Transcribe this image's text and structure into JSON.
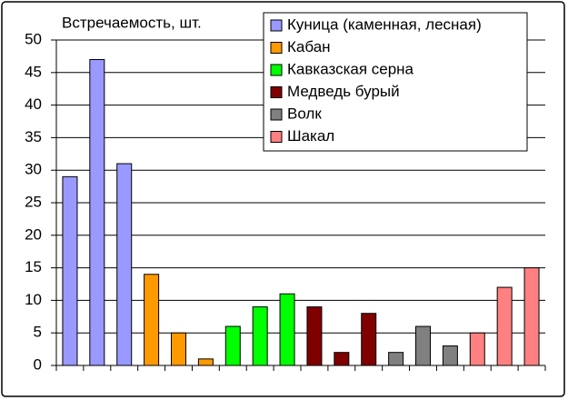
{
  "chart_data": {
    "type": "bar",
    "title": "Встречаемость, шт.",
    "categories": [
      null,
      null,
      null,
      null,
      null,
      null,
      null,
      null,
      null,
      null,
      null,
      null,
      null,
      null,
      null,
      null,
      null,
      null
    ],
    "series": [
      {
        "name": "Куница (каменная, лесная)",
        "color": "#9999ff",
        "values": [
          29,
          47,
          31,
          null,
          null,
          null,
          null,
          null,
          null,
          null,
          null,
          null,
          null,
          null,
          null,
          null,
          null,
          null
        ]
      },
      {
        "name": "Кабан",
        "color": "#ff9900",
        "values": [
          null,
          null,
          null,
          14,
          5,
          1,
          null,
          null,
          null,
          null,
          null,
          null,
          null,
          null,
          null,
          null,
          null,
          null
        ]
      },
      {
        "name": "Кавказская серна",
        "color": "#00ff00",
        "values": [
          null,
          null,
          null,
          null,
          null,
          null,
          6,
          9,
          11,
          null,
          null,
          null,
          null,
          null,
          null,
          null,
          null,
          null
        ]
      },
      {
        "name": "Медведь бурый",
        "color": "#800000",
        "values": [
          null,
          null,
          null,
          null,
          null,
          null,
          null,
          null,
          null,
          9,
          2,
          8,
          null,
          null,
          null,
          null,
          null,
          null
        ]
      },
      {
        "name": "Волк",
        "color": "#808080",
        "values": [
          null,
          null,
          null,
          null,
          null,
          null,
          null,
          null,
          null,
          null,
          null,
          null,
          2,
          6,
          3,
          null,
          null,
          null
        ]
      },
      {
        "name": "Шакал",
        "color": "#ff8080",
        "values": [
          null,
          null,
          null,
          null,
          null,
          null,
          null,
          null,
          null,
          null,
          null,
          null,
          null,
          null,
          null,
          5,
          12,
          15
        ]
      }
    ],
    "ylim": [
      0,
      50
    ],
    "yticks": [
      0,
      5,
      10,
      15,
      20,
      25,
      30,
      35,
      40,
      45,
      50
    ],
    "grid": true,
    "legend": "top-right"
  }
}
